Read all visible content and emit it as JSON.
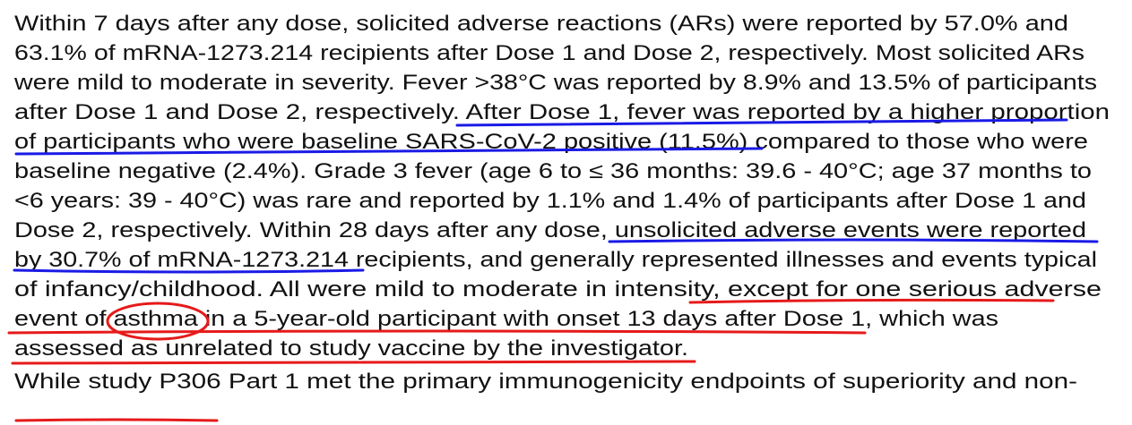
{
  "paragraphs": [
    {
      "lines": [
        "Within 7 days after any dose, solicited adverse reactions (ARs) were reported by 57.0% and",
        "63.1% of mRNA-1273.214 recipients after Dose 1 and Dose 2, respectively. Most solicited ARs",
        "were mild to moderate in severity. Fever >38°C was reported by 8.9% and 13.5% of participants",
        "after Dose 1 and Dose 2, respectively. After Dose 1, fever was reported by a higher proportion",
        "of participants who were baseline SARS-CoV-2 positive (11.5%) compared to those who were",
        "baseline negative (2.4%). Grade 3 fever (age 6 to ≤ 36 months: 39.6 - 40°C; age 37 months to",
        "<6 years: 39 - 40°C) was rare and reported by 1.1% and 1.4% of participants after Dose 1 and",
        "Dose 2, respectively. Within 28 days after any dose, unsolicited adverse events were reported",
        "by 30.7% of mRNA-1273.214 recipients, and generally represented illnesses and events typical",
        "of infancy/childhood. All were mild to moderate in intensity, except for one serious adverse",
        "event of asthma in a 5-year-old participant with onset 13 days after Dose 1, which was",
        "assessed as unrelated to study vaccine by the investigator."
      ]
    },
    {
      "lines": [
        "While study P306 Part 1 met the primary immunogenicity endpoints of superiority and non-"
      ]
    }
  ]
}
